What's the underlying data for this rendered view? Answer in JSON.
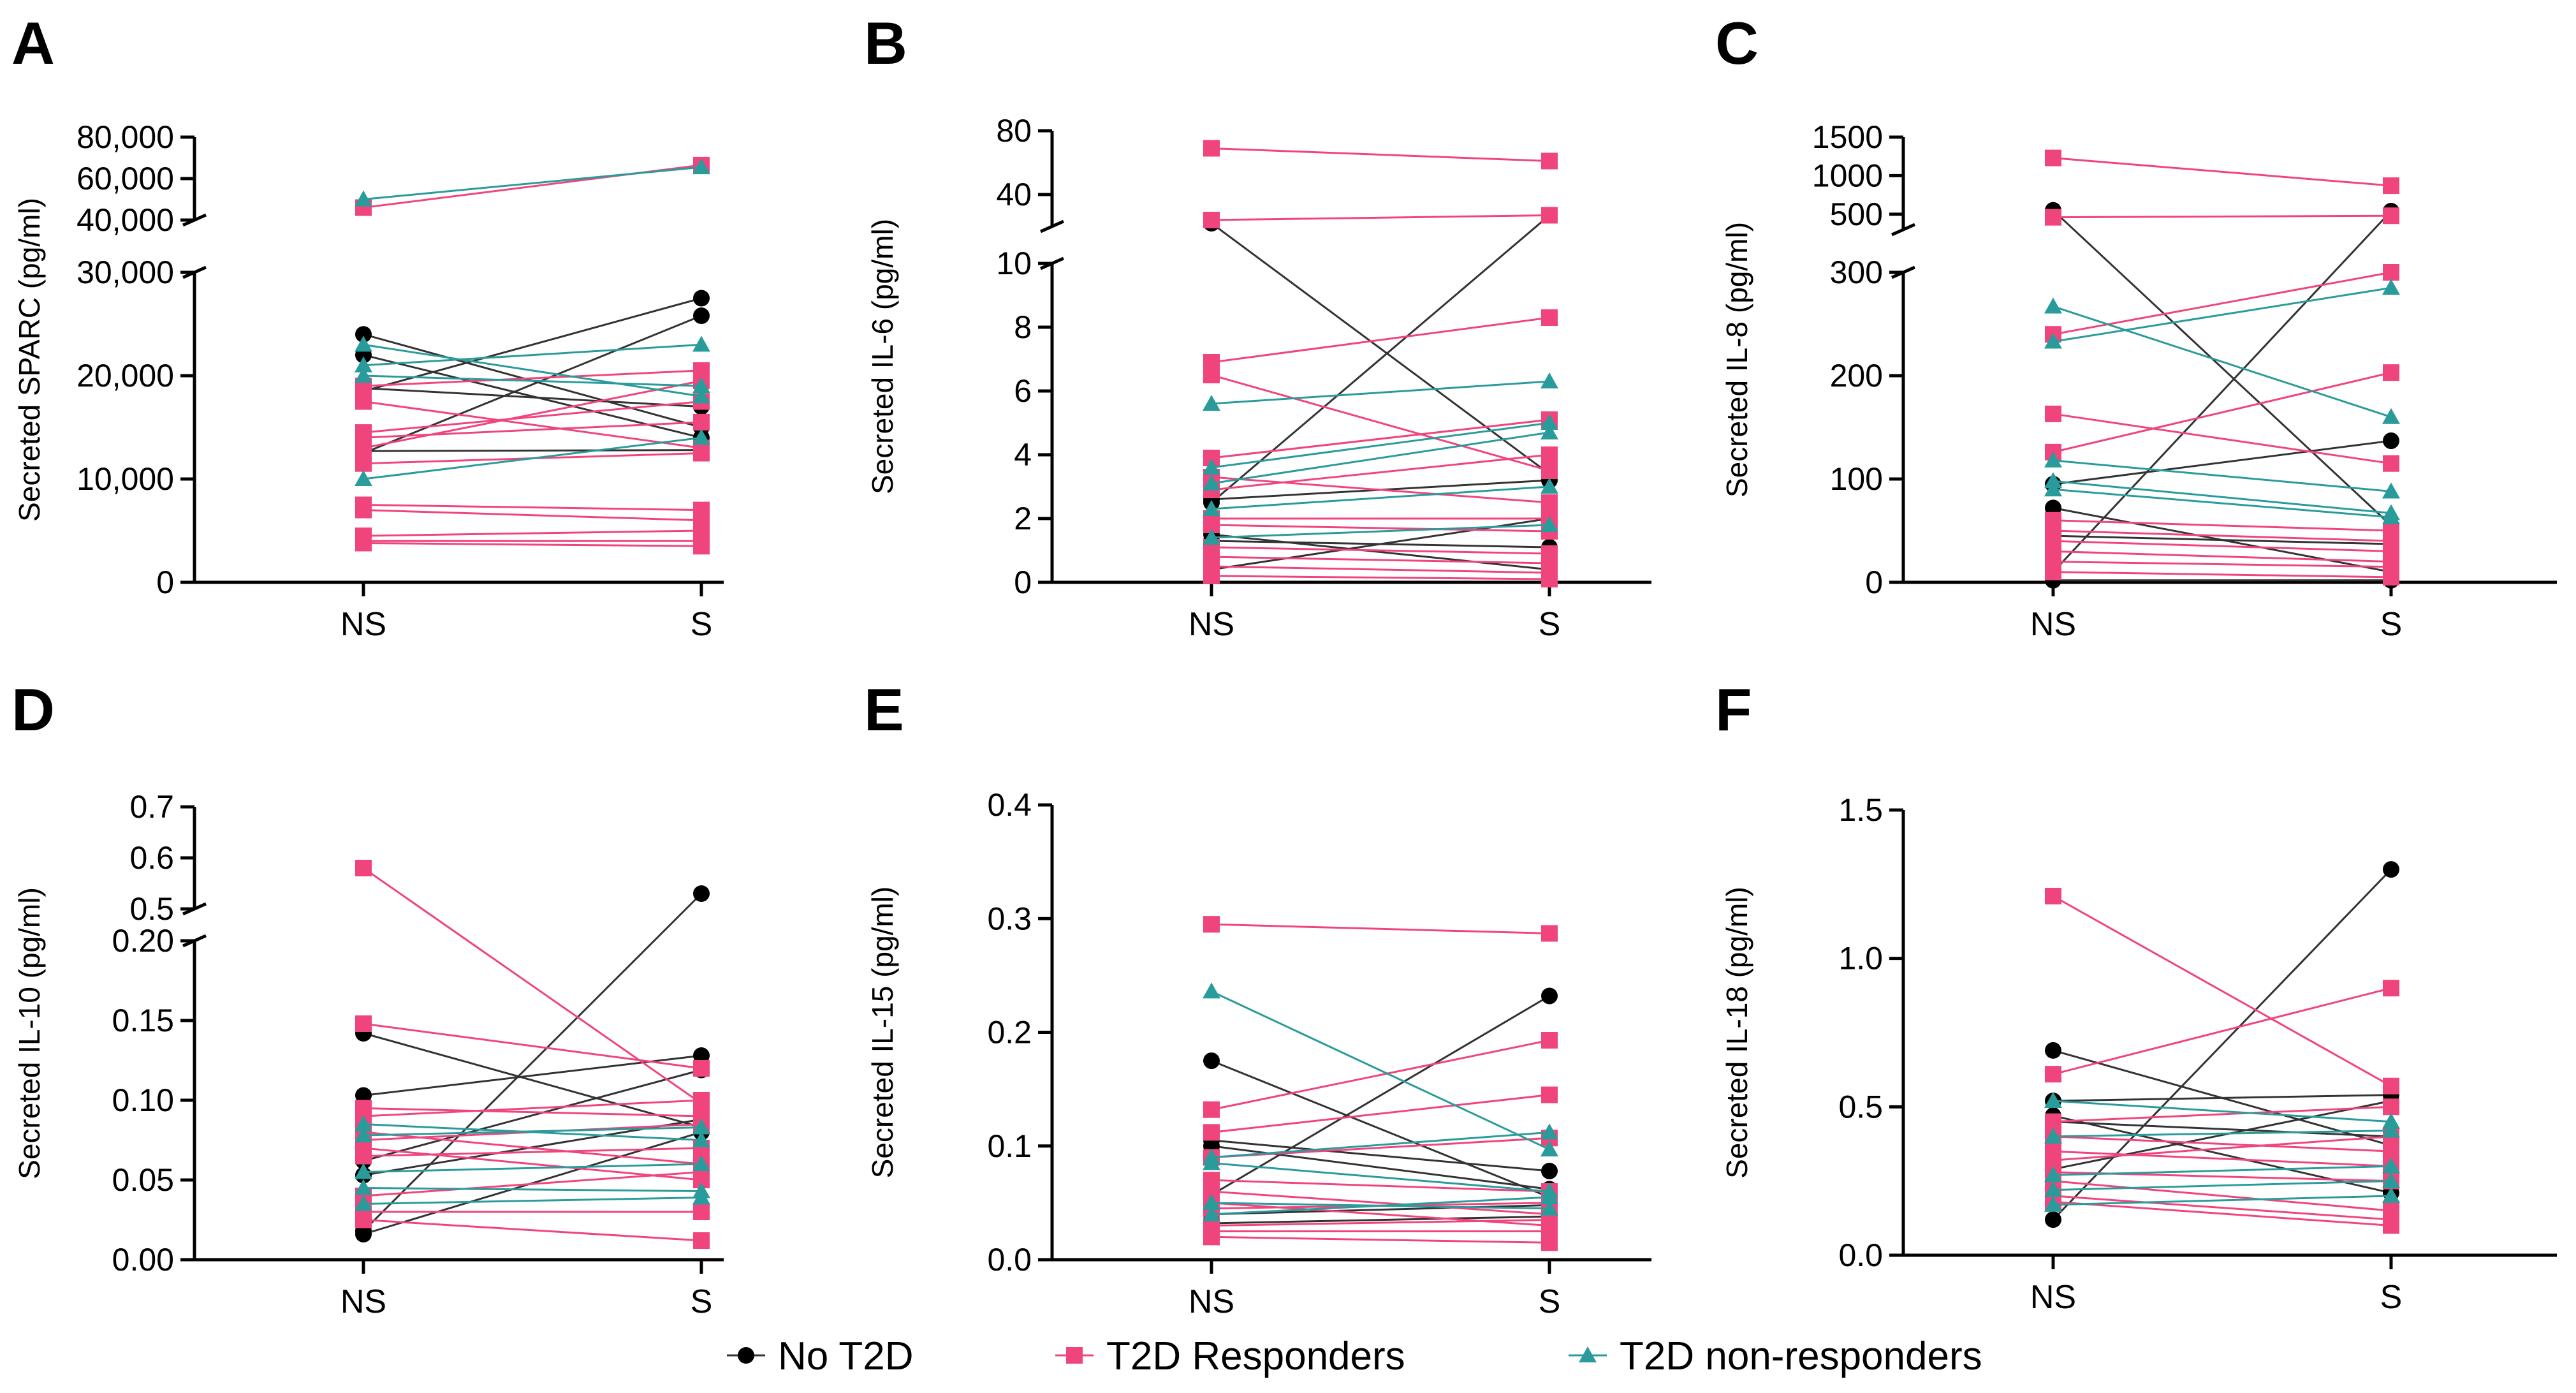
{
  "figure": {
    "legend": [
      {
        "key": "no",
        "label": "No T2D",
        "color": "#000000",
        "marker": "circle"
      },
      {
        "key": "resp",
        "label": "T2D Responders",
        "color": "#f0457c",
        "marker": "square"
      },
      {
        "key": "nonresp",
        "label": "T2D non-responders",
        "color": "#2a9b9b",
        "marker": "triangle"
      }
    ]
  },
  "chart_data": [
    {
      "panel": "A",
      "type": "line",
      "ylabel": "Secreted SPARC (pg/ml)",
      "categories": [
        "NS",
        "S"
      ],
      "lower": {
        "ylim": [
          0,
          30000
        ],
        "ticks": [
          0,
          10000,
          20000,
          30000
        ],
        "tick_labels": [
          "0",
          "10,000",
          "20,000",
          "30,000"
        ]
      },
      "upper": {
        "ylim": [
          40000,
          80000
        ],
        "ticks": [
          40000,
          60000,
          80000
        ],
        "tick_labels": [
          "40,000",
          "60,000",
          "80,000"
        ]
      },
      "series": [
        {
          "group": "no",
          "pairs": [
            [
              24000,
              15000
            ],
            [
              22000,
              14000
            ],
            [
              18800,
              17000
            ],
            [
              18500,
              27500
            ],
            [
              12500,
              25800
            ],
            [
              12700,
              12800
            ]
          ]
        },
        {
          "group": "resp",
          "pairs": [
            [
              46000,
              66500
            ],
            [
              19000,
              20500
            ],
            [
              17500,
              13000
            ],
            [
              14500,
              17500
            ],
            [
              14000,
              15500
            ],
            [
              13000,
              19500
            ],
            [
              11500,
              12500
            ],
            [
              7500,
              7000
            ],
            [
              7000,
              6000
            ],
            [
              4500,
              5000
            ],
            [
              4000,
              4000
            ],
            [
              3800,
              3500
            ]
          ]
        },
        {
          "group": "nonresp",
          "pairs": [
            [
              50000,
              65500
            ],
            [
              23000,
              18000
            ],
            [
              21000,
              23000
            ],
            [
              20000,
              19000
            ],
            [
              10000,
              14000
            ]
          ]
        }
      ]
    },
    {
      "panel": "B",
      "type": "line",
      "ylabel": "Secreted IL-6 (pg/ml)",
      "categories": [
        "NS",
        "S"
      ],
      "lower": {
        "ylim": [
          0,
          10
        ],
        "ticks": [
          0,
          2,
          4,
          6,
          8,
          10
        ],
        "tick_labels": [
          "0",
          "2",
          "4",
          "6",
          "8",
          "10"
        ]
      },
      "upper": {
        "ylim": [
          20,
          80
        ],
        "ticks": [
          40,
          80
        ],
        "tick_labels": [
          "40",
          "80"
        ]
      },
      "series": [
        {
          "group": "no",
          "pairs": [
            [
              22,
              3.4
            ],
            [
              2.5,
              27
            ],
            [
              1.5,
              0.4
            ],
            [
              1.3,
              1.1
            ],
            [
              0.4,
              2.0
            ],
            [
              2.6,
              3.2
            ]
          ]
        },
        {
          "group": "resp",
          "pairs": [
            [
              69,
              61
            ],
            [
              24,
              27
            ],
            [
              6.9,
              8.3
            ],
            [
              6.5,
              3.5
            ],
            [
              3.9,
              5.1
            ],
            [
              3.3,
              2.5
            ],
            [
              2.9,
              4.0
            ],
            [
              2.0,
              2.0
            ],
            [
              1.8,
              1.6
            ],
            [
              1.1,
              0.9
            ],
            [
              0.8,
              0.6
            ],
            [
              0.5,
              0.3
            ],
            [
              0.2,
              0.1
            ]
          ]
        },
        {
          "group": "nonresp",
          "pairs": [
            [
              5.6,
              6.3
            ],
            [
              3.6,
              5.0
            ],
            [
              3.1,
              4.7
            ],
            [
              2.3,
              3.0
            ],
            [
              1.4,
              1.8
            ]
          ]
        }
      ]
    },
    {
      "panel": "C",
      "type": "line",
      "ylabel": "Secreted IL-8 (pg/ml)",
      "categories": [
        "NS",
        "S"
      ],
      "lower": {
        "ylim": [
          0,
          300
        ],
        "ticks": [
          0,
          100,
          200,
          300
        ],
        "tick_labels": [
          "0",
          "100",
          "200",
          "300"
        ]
      },
      "upper": {
        "ylim": [
          300,
          1500
        ],
        "ticks": [
          500,
          1000,
          1500
        ],
        "tick_labels": [
          "500",
          "1000",
          "1500"
        ]
      },
      "series": [
        {
          "group": "no",
          "pairs": [
            [
              550,
              55
            ],
            [
              10,
              540
            ],
            [
              95,
              137
            ],
            [
              72,
              10
            ],
            [
              45,
              37
            ],
            [
              2,
              2
            ]
          ]
        },
        {
          "group": "resp",
          "pairs": [
            [
              1230,
              870
            ],
            [
              460,
              480
            ],
            [
              240,
              300
            ],
            [
              163,
              115
            ],
            [
              126,
              203
            ],
            [
              60,
              50
            ],
            [
              50,
              40
            ],
            [
              40,
              30
            ],
            [
              30,
              20
            ],
            [
              20,
              15
            ],
            [
              10,
              5
            ]
          ]
        },
        {
          "group": "nonresp",
          "pairs": [
            [
              267,
              160
            ],
            [
              233,
              285
            ],
            [
              118,
              88
            ],
            [
              98,
              67
            ],
            [
              90,
              63
            ]
          ]
        }
      ]
    },
    {
      "panel": "D",
      "type": "line",
      "ylabel": "Secreted IL-10 (pg/ml)",
      "categories": [
        "NS",
        "S"
      ],
      "lower": {
        "ylim": [
          0,
          0.2
        ],
        "ticks": [
          0,
          0.05,
          0.1,
          0.15,
          0.2
        ],
        "tick_labels": [
          "0.00",
          "0.05",
          "0.10",
          "0.15",
          "0.20"
        ]
      },
      "upper": {
        "ylim": [
          0.5,
          0.7
        ],
        "ticks": [
          0.5,
          0.6,
          0.7
        ],
        "tick_labels": [
          "0.5",
          "0.6",
          "0.7"
        ]
      },
      "series": [
        {
          "group": "no",
          "pairs": [
            [
              0.018,
              0.53
            ],
            [
              0.142,
              0.083
            ],
            [
              0.103,
              0.128
            ],
            [
              0.062,
              0.119
            ],
            [
              0.053,
              0.088
            ],
            [
              0.016,
              0.08
            ]
          ]
        },
        {
          "group": "resp",
          "pairs": [
            [
              0.58,
              0.098
            ],
            [
              0.148,
              0.12
            ],
            [
              0.095,
              0.09
            ],
            [
              0.09,
              0.1
            ],
            [
              0.08,
              0.06
            ],
            [
              0.075,
              0.085
            ],
            [
              0.07,
              0.05
            ],
            [
              0.065,
              0.07
            ],
            [
              0.04,
              0.055
            ],
            [
              0.03,
              0.03
            ],
            [
              0.025,
              0.012
            ]
          ]
        },
        {
          "group": "nonresp",
          "pairs": [
            [
              0.085,
              0.075
            ],
            [
              0.078,
              0.083
            ],
            [
              0.055,
              0.06
            ],
            [
              0.045,
              0.043
            ],
            [
              0.035,
              0.039
            ]
          ]
        }
      ]
    },
    {
      "panel": "E",
      "type": "line",
      "ylabel": "Secreted IL-15 (pg/ml)",
      "categories": [
        "NS",
        "S"
      ],
      "lower": {
        "ylim": [
          0,
          0.4
        ],
        "ticks": [
          0,
          0.1,
          0.2,
          0.3,
          0.4
        ],
        "tick_labels": [
          "0.0",
          "0.1",
          "0.2",
          "0.3",
          "0.4"
        ]
      },
      "series": [
        {
          "group": "no",
          "pairs": [
            [
              0.175,
              0.055
            ],
            [
              0.105,
              0.078
            ],
            [
              0.1,
              0.062
            ],
            [
              0.057,
              0.232
            ],
            [
              0.04,
              0.048
            ],
            [
              0.032,
              0.038
            ]
          ]
        },
        {
          "group": "resp",
          "pairs": [
            [
              0.295,
              0.287
            ],
            [
              0.132,
              0.193
            ],
            [
              0.112,
              0.145
            ],
            [
              0.09,
              0.107
            ],
            [
              0.07,
              0.06
            ],
            [
              0.06,
              0.04
            ],
            [
              0.05,
              0.03
            ],
            [
              0.045,
              0.05
            ],
            [
              0.03,
              0.035
            ],
            [
              0.025,
              0.025
            ],
            [
              0.02,
              0.015
            ]
          ]
        },
        {
          "group": "nonresp",
          "pairs": [
            [
              0.236,
              0.097
            ],
            [
              0.09,
              0.112
            ],
            [
              0.085,
              0.06
            ],
            [
              0.05,
              0.045
            ],
            [
              0.04,
              0.055
            ]
          ]
        }
      ]
    },
    {
      "panel": "F",
      "type": "line",
      "ylabel": "Secreted IL-18 (pg/ml)",
      "categories": [
        "NS",
        "S"
      ],
      "lower": {
        "ylim": [
          0,
          1.5
        ],
        "ticks": [
          0,
          0.5,
          1.0,
          1.5
        ],
        "tick_labels": [
          "0.0",
          "0.5",
          "1.0",
          "1.5"
        ]
      },
      "series": [
        {
          "group": "no",
          "pairs": [
            [
              0.69,
              0.37
            ],
            [
              0.52,
              0.54
            ],
            [
              0.47,
              0.21
            ],
            [
              0.45,
              0.4
            ],
            [
              0.29,
              0.52
            ],
            [
              0.12,
              1.3
            ]
          ]
        },
        {
          "group": "resp",
          "pairs": [
            [
              1.21,
              0.57
            ],
            [
              0.61,
              0.9
            ],
            [
              0.45,
              0.5
            ],
            [
              0.4,
              0.35
            ],
            [
              0.35,
              0.3
            ],
            [
              0.32,
              0.4
            ],
            [
              0.28,
              0.25
            ],
            [
              0.25,
              0.15
            ],
            [
              0.2,
              0.12
            ],
            [
              0.18,
              0.1
            ]
          ]
        },
        {
          "group": "nonresp",
          "pairs": [
            [
              0.52,
              0.45
            ],
            [
              0.4,
              0.42
            ],
            [
              0.27,
              0.3
            ],
            [
              0.22,
              0.25
            ],
            [
              0.17,
              0.2
            ]
          ]
        }
      ]
    }
  ]
}
